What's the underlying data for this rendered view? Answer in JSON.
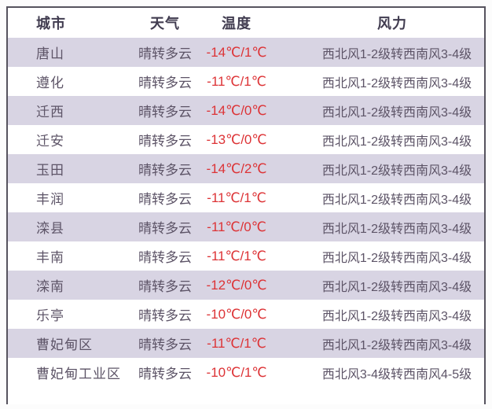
{
  "table": {
    "colors": {
      "stripe": "#d8d4e3",
      "border": "#56535e",
      "header_text": "#413c50",
      "body_text": "#5d5467",
      "temperature_red": "#dd3336"
    },
    "columns": [
      "城市",
      "天气",
      "温度",
      "风力"
    ],
    "rows": [
      {
        "city": "唐山",
        "weather": "晴转多云",
        "temperature": "-14℃/1℃",
        "wind": "西北风1-2级转西南风3-4级"
      },
      {
        "city": "遵化",
        "weather": "晴转多云",
        "temperature": "-11℃/1℃",
        "wind": "西北风1-2级转西南风3-4级"
      },
      {
        "city": "迁西",
        "weather": "晴转多云",
        "temperature": "-14℃/0℃",
        "wind": "西北风1-2级转西南风3-4级"
      },
      {
        "city": "迁安",
        "weather": "晴转多云",
        "temperature": "-13℃/0℃",
        "wind": "西北风1-2级转西南风3-4级"
      },
      {
        "city": "玉田",
        "weather": "晴转多云",
        "temperature": "-14℃/2℃",
        "wind": "西北风1-2级转西南风3-4级"
      },
      {
        "city": "丰润",
        "weather": "晴转多云",
        "temperature": "-11℃/1℃",
        "wind": "西北风1-2级转西南风3-4级"
      },
      {
        "city": "滦县",
        "weather": "晴转多云",
        "temperature": "-11℃/0℃",
        "wind": "西北风1-2级转西南风3-4级"
      },
      {
        "city": "丰南",
        "weather": "晴转多云",
        "temperature": "-11℃/1℃",
        "wind": "西北风1-2级转西南风3-4级"
      },
      {
        "city": "滦南",
        "weather": "晴转多云",
        "temperature": "-12℃/0℃",
        "wind": "西北风1-2级转西南风3-4级"
      },
      {
        "city": "乐亭",
        "weather": "晴转多云",
        "temperature": "-10℃/0℃",
        "wind": "西北风1-2级转西南风3-4级"
      },
      {
        "city": "曹妃甸区",
        "weather": "晴转多云",
        "temperature": "-11℃/1℃",
        "wind": "西北风1-2级转西南风3-4级"
      },
      {
        "city": "曹妃甸工业区",
        "weather": "晴转多云",
        "temperature": "-10℃/1℃",
        "wind": "西北风3-4级转西南风4-5级"
      }
    ]
  }
}
